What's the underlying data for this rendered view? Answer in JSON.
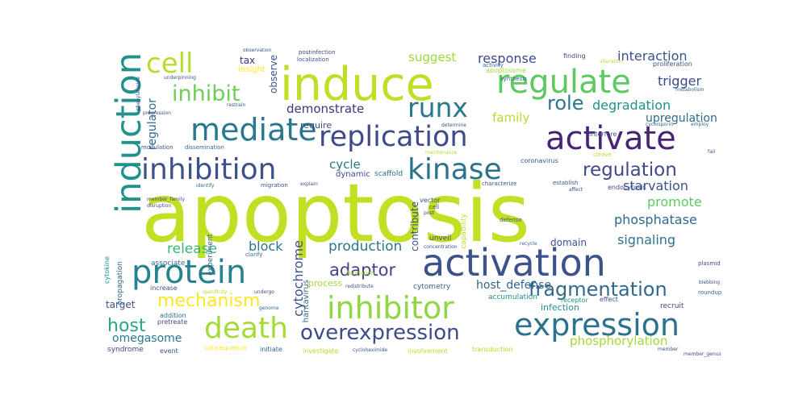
{
  "words": [
    {
      "id": "apoptosis",
      "text": "apoptosis",
      "color": "#c2df23"
    },
    {
      "id": "induce",
      "text": "induce",
      "color": "#bddf26"
    },
    {
      "id": "activation",
      "text": "activation",
      "color": "#3b528b"
    },
    {
      "id": "induction",
      "text": "induction",
      "color": "#21918c"
    },
    {
      "id": "regulate",
      "text": "regulate",
      "color": "#5ec962"
    },
    {
      "id": "activate",
      "text": "activate",
      "color": "#482475"
    },
    {
      "id": "replication",
      "text": "replication",
      "color": "#3e4a89"
    },
    {
      "id": "mediate",
      "text": "mediate",
      "color": "#2a788e"
    },
    {
      "id": "protein",
      "text": "protein",
      "color": "#26828e"
    },
    {
      "id": "inhibitor",
      "text": "inhibitor",
      "color": "#8fd744"
    },
    {
      "id": "expression",
      "text": "expression",
      "color": "#2c728e"
    },
    {
      "id": "inhibition",
      "text": "inhibition",
      "color": "#3b528b"
    },
    {
      "id": "kinase",
      "text": "kinase",
      "color": "#2c728e"
    },
    {
      "id": "death",
      "text": "death",
      "color": "#a5db36"
    },
    {
      "id": "runx",
      "text": "runx",
      "color": "#2a788e"
    },
    {
      "id": "cell",
      "text": "cell",
      "color": "#b5de2b"
    },
    {
      "id": "overexpression",
      "text": "overexpression",
      "color": "#3e4a89"
    },
    {
      "id": "mechanism",
      "text": "mechanism",
      "color": "#fde725"
    },
    {
      "id": "fragmentation",
      "text": "fragmentation",
      "color": "#31688e"
    },
    {
      "id": "inhibit",
      "text": "inhibit",
      "color": "#6ece58"
    },
    {
      "id": "regulation",
      "text": "regulation",
      "color": "#3e4a89"
    },
    {
      "id": "role",
      "text": "role",
      "color": "#2a788e"
    },
    {
      "id": "adaptor",
      "text": "adaptor",
      "color": "#414487"
    },
    {
      "id": "host",
      "text": "host",
      "color": "#22a884"
    },
    {
      "id": "production",
      "text": "production",
      "color": "#2a788e"
    },
    {
      "id": "release",
      "text": "release",
      "color": "#35b779"
    },
    {
      "id": "block",
      "text": "block",
      "color": "#2a788e"
    },
    {
      "id": "demonstrate",
      "text": "demonstrate",
      "color": "#46327e"
    },
    {
      "id": "cytochrome",
      "text": "cytochrome",
      "color": "#3b528b"
    },
    {
      "id": "response",
      "text": "response",
      "color": "#3e4a89"
    },
    {
      "id": "interaction",
      "text": "interaction",
      "color": "#3b528b"
    },
    {
      "id": "trigger",
      "text": "trigger",
      "color": "#3e4a89"
    },
    {
      "id": "degradation",
      "text": "degradation",
      "color": "#21918c"
    },
    {
      "id": "upregulation",
      "text": "upregulation",
      "color": "#31688e"
    },
    {
      "id": "suggest",
      "text": "suggest",
      "color": "#9fda3a"
    },
    {
      "id": "family",
      "text": "family",
      "color": "#b5de2b"
    },
    {
      "id": "cycle",
      "text": "cycle",
      "color": "#2a788e"
    },
    {
      "id": "signaling",
      "text": "signaling",
      "color": "#2c728e"
    },
    {
      "id": "phosphatase",
      "text": "phosphatase",
      "color": "#31688e"
    },
    {
      "id": "promote",
      "text": "promote",
      "color": "#5ec962"
    },
    {
      "id": "starvation",
      "text": "starvation",
      "color": "#3b528b"
    },
    {
      "id": "phosphorylation",
      "text": "phosphorylation",
      "color": "#9fda3a"
    },
    {
      "id": "host_defense",
      "text": "host_defense",
      "color": "#31688e"
    },
    {
      "id": "omegasome",
      "text": "omegasome",
      "color": "#2a788e"
    },
    {
      "id": "regulator",
      "text": "regulator",
      "color": "#31688e"
    },
    {
      "id": "observe",
      "text": "observe",
      "color": "#3b528b"
    },
    {
      "id": "tax",
      "text": "tax",
      "color": "#46327e"
    },
    {
      "id": "domain",
      "text": "domain",
      "color": "#3b528b"
    },
    {
      "id": "target",
      "text": "target",
      "color": "#3b528b"
    },
    {
      "id": "require",
      "text": "require",
      "color": "#3e4a89"
    },
    {
      "id": "contribute",
      "text": "contribute",
      "color": "#3b528b"
    },
    {
      "id": "infection",
      "text": "infection",
      "color": "#21918c"
    },
    {
      "id": "process",
      "text": "process",
      "color": "#9fda3a"
    },
    {
      "id": "insight",
      "text": "insight",
      "color": "#fde725"
    },
    {
      "id": "dynamic",
      "text": "dynamic",
      "color": "#3e4a89"
    },
    {
      "id": "scaffold",
      "text": "scaffold",
      "color": "#2c728e"
    },
    {
      "id": "propagation",
      "text": "propagation",
      "color": "#31688e"
    },
    {
      "id": "hantavirus",
      "text": "hantavirus",
      "color": "#31688e"
    },
    {
      "id": "capability",
      "text": "capability",
      "color": "#b5de2b"
    },
    {
      "id": "endocytosis",
      "text": "endocytosis",
      "color": "#3e4a89"
    },
    {
      "id": "receptor",
      "text": "receptor",
      "color": "#21918c"
    },
    {
      "id": "unveil",
      "text": "unveil",
      "color": "#3e4a89"
    },
    {
      "id": "accumulation",
      "text": "accumulation",
      "color": "#21918c"
    },
    {
      "id": "cytometry",
      "text": "cytometry",
      "color": "#31688e"
    },
    {
      "id": "associate",
      "text": "associate",
      "color": "#2c728e"
    },
    {
      "id": "experiment",
      "text": "experiment",
      "color": "#31688e"
    },
    {
      "id": "cytokine",
      "text": "cytokine",
      "color": "#21918c"
    },
    {
      "id": "syndrome",
      "text": "syndrome",
      "color": "#3e4a89"
    },
    {
      "id": "event",
      "text": "event",
      "color": "#3b528b"
    },
    {
      "id": "consequence",
      "text": "consequence",
      "color": "#fde725"
    },
    {
      "id": "initiate",
      "text": "initiate",
      "color": "#31688e"
    },
    {
      "id": "investigate",
      "text": "investigate",
      "color": "#b5de2b"
    },
    {
      "id": "involvement",
      "text": "involvement",
      "color": "#b5de2b"
    },
    {
      "id": "transduction",
      "text": "transduction",
      "color": "#b5de2b"
    },
    {
      "id": "pretreate",
      "text": "pretreate",
      "color": "#3e4a89"
    },
    {
      "id": "addition",
      "text": "addition",
      "color": "#2c728e"
    },
    {
      "id": "increase",
      "text": "increase",
      "color": "#3b528b"
    },
    {
      "id": "modulation",
      "text": "modulation",
      "color": "#3b528b"
    },
    {
      "id": "dissemination",
      "text": "dissemination",
      "color": "#31688e"
    },
    {
      "id": "coronavirus",
      "text": "coronavirus",
      "color": "#3b528b"
    },
    {
      "id": "vector",
      "text": "vector",
      "color": "#3b528b"
    },
    {
      "id": "defense",
      "text": "defense",
      "color": "#31688e"
    },
    {
      "id": "effect",
      "text": "effect",
      "color": "#3b528b"
    },
    {
      "id": "recruit",
      "text": "recruit",
      "color": "#3e4a89"
    },
    {
      "id": "roundup",
      "text": "roundup",
      "color": "#31688e"
    },
    {
      "id": "plasmid",
      "text": "plasmid",
      "color": "#3e4a89"
    },
    {
      "id": "postinfection",
      "text": "postinfection",
      "color": "#3e4a89"
    },
    {
      "id": "localization",
      "text": "localization",
      "color": "#3b528b"
    },
    {
      "id": "observation",
      "text": "observation",
      "color": "#3b528b"
    },
    {
      "id": "synthesis",
      "text": "synthesis",
      "color": "#31688e"
    },
    {
      "id": "apoptosome",
      "text": "apoptosome",
      "color": "#9fda3a"
    },
    {
      "id": "activity",
      "text": "activity",
      "color": "#31688e"
    },
    {
      "id": "finding",
      "text": "finding",
      "color": "#3e4a89"
    },
    {
      "id": "alteration",
      "text": "alteration",
      "color": "#b5de2b"
    },
    {
      "id": "proliferation",
      "text": "proliferation",
      "color": "#3b528b"
    },
    {
      "id": "metabolism",
      "text": "metabolism",
      "color": "#31688e"
    },
    {
      "id": "underpinning",
      "text": "underpinning",
      "color": "#3b528b"
    },
    {
      "id": "phenylalanine",
      "text": "phenylalanine",
      "color": "#3e4a89"
    },
    {
      "id": "restrain",
      "text": "restrain",
      "color": "#3b528b"
    },
    {
      "id": "interfere",
      "text": "interfere",
      "color": "#3b528b"
    },
    {
      "id": "cyclosporin",
      "text": "cyclosporin",
      "color": "#31688e"
    },
    {
      "id": "employ",
      "text": "employ",
      "color": "#31688e"
    },
    {
      "id": "determine",
      "text": "determine",
      "color": "#3b528b"
    },
    {
      "id": "identify",
      "text": "identify",
      "color": "#31688e"
    },
    {
      "id": "migration",
      "text": "migration",
      "color": "#3b528b"
    },
    {
      "id": "explain",
      "text": "explain",
      "color": "#3e4a89"
    },
    {
      "id": "characterize",
      "text": "characterize",
      "color": "#3b528b"
    },
    {
      "id": "establish",
      "text": "establish",
      "color": "#3b528b"
    },
    {
      "id": "affect",
      "text": "affect",
      "color": "#3e4a89"
    },
    {
      "id": "member_family",
      "text": "member_family",
      "color": "#3e4a89"
    },
    {
      "id": "disruption",
      "text": "disruption",
      "color": "#3b528b"
    },
    {
      "id": "clarify",
      "text": "clarify",
      "color": "#31688e"
    },
    {
      "id": "undergo",
      "text": "undergo",
      "color": "#3e4a89"
    },
    {
      "id": "specificity",
      "text": "specificity",
      "color": "#b5de2b"
    },
    {
      "id": "genome",
      "text": "genome",
      "color": "#31688e"
    },
    {
      "id": "redistribute",
      "text": "redistribute",
      "color": "#3b528b"
    },
    {
      "id": "cycloheximide",
      "text": "cycloheximide",
      "color": "#3b528b"
    },
    {
      "id": "member",
      "text": "member",
      "color": "#3b528b"
    },
    {
      "id": "member_genus",
      "text": "member_genus",
      "color": "#3e4a89"
    },
    {
      "id": "blebbing",
      "text": "blebbing",
      "color": "#3b528b"
    },
    {
      "id": "recycle",
      "text": "recycle",
      "color": "#31688e"
    },
    {
      "id": "cleave",
      "text": "cleave",
      "color": "#b5de2b"
    },
    {
      "id": "maintenance",
      "text": "maintenance",
      "color": "#b5de2b"
    },
    {
      "id": "formation",
      "text": "formation",
      "color": "#b5de2b"
    },
    {
      "id": "concentration",
      "text": "concentration",
      "color": "#3b528b"
    },
    {
      "id": "progression",
      "text": "progression",
      "color": "#3b528b"
    },
    {
      "id": "cell_small",
      "text": "cell",
      "color": "#3e4a89"
    },
    {
      "id": "post",
      "text": "post",
      "color": "#3b528b"
    },
    {
      "id": "fail",
      "text": "fail",
      "color": "#3b528b"
    }
  ]
}
